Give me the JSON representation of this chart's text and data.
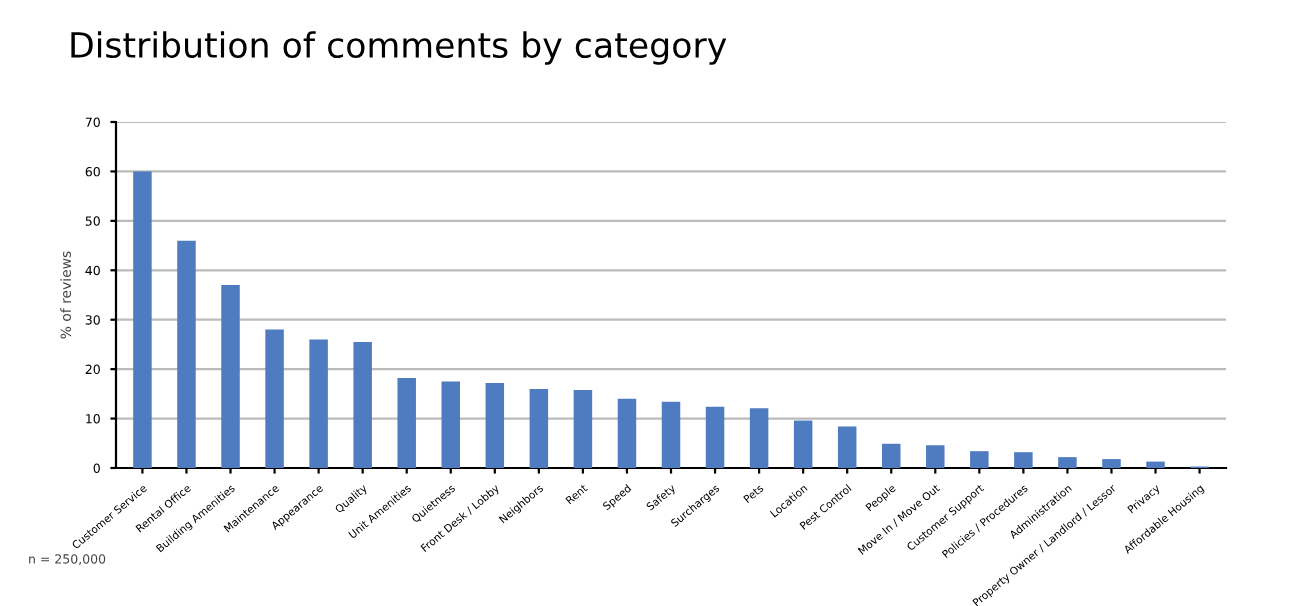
{
  "chart_data": {
    "type": "bar",
    "title": "Distribution of comments by category",
    "ylabel": "% of reviews",
    "categories": [
      "Customer Service",
      "Rental Office",
      "Building Amenities",
      "Maintenance",
      "Appearance",
      "Quality",
      "Unit Amenities",
      "Quietness",
      "Front Desk / Lobby",
      "Neighbors",
      "Rent",
      "Speed",
      "Safety",
      "Surcharges",
      "Pets",
      "Location",
      "Pest Control",
      "People",
      "Move In / Move Out",
      "Customer Support",
      "Policies / Procedures",
      "Administration",
      "Property Owner / Landlord / Lessor",
      "Privacy",
      "Affordable Housing"
    ],
    "values": [
      60,
      46,
      37,
      28,
      26,
      25.5,
      18.2,
      17.5,
      17.2,
      16,
      15.8,
      14,
      13.4,
      12.4,
      12.1,
      9.6,
      8.4,
      4.9,
      4.6,
      3.4,
      3.2,
      2.2,
      1.8,
      1.3,
      0.3
    ],
    "color": "#4f7bc0",
    "ylim": [
      0,
      70
    ],
    "yticks": [
      0,
      10,
      20,
      30,
      40,
      50,
      60,
      70
    ],
    "grid": "y",
    "annotations": [
      "n = 250,000"
    ]
  }
}
